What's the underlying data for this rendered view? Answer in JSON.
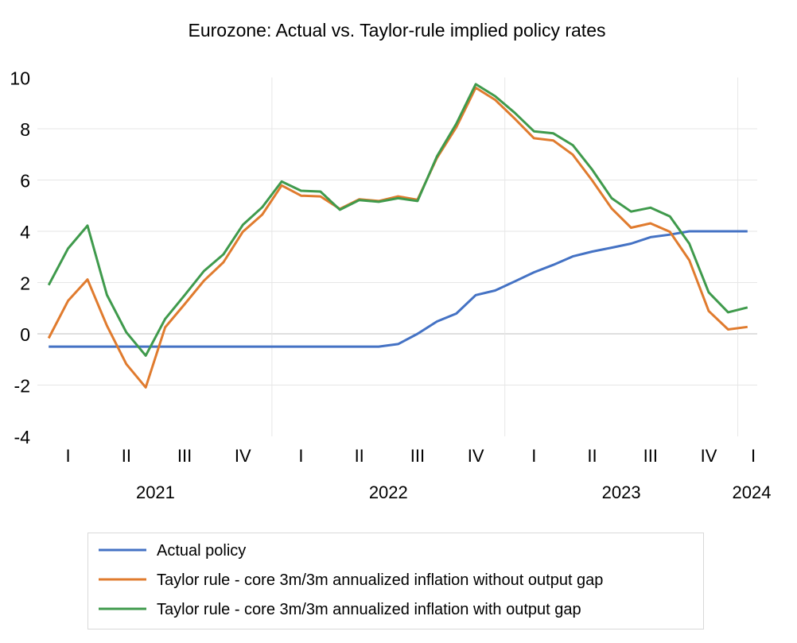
{
  "chart_data": {
    "type": "line",
    "title": "Eurozone: Actual vs. Taylor-rule implied policy rates",
    "xlabel": "",
    "ylabel": "",
    "ylim": [
      -4,
      10
    ],
    "yticks": [
      "10",
      "8",
      "6",
      "4",
      "2",
      "0",
      "-2",
      "-4"
    ],
    "ytick_values": [
      10,
      8,
      6,
      4,
      2,
      0,
      -2,
      -4
    ],
    "grid": true,
    "legend_position": "bottom",
    "x_months": 37,
    "quarters": [
      {
        "label": "I",
        "month_index": 1
      },
      {
        "label": "II",
        "month_index": 4
      },
      {
        "label": "III",
        "month_index": 7
      },
      {
        "label": "IV",
        "month_index": 10
      },
      {
        "label": "I",
        "month_index": 13
      },
      {
        "label": "II",
        "month_index": 16
      },
      {
        "label": "III",
        "month_index": 19
      },
      {
        "label": "IV",
        "month_index": 22
      },
      {
        "label": "I",
        "month_index": 25
      },
      {
        "label": "II",
        "month_index": 28
      },
      {
        "label": "III",
        "month_index": 31
      },
      {
        "label": "IV",
        "month_index": 34
      },
      {
        "label": "I",
        "month_index": 36.3
      }
    ],
    "years": [
      {
        "label": "2021",
        "start": 0,
        "end": 12
      },
      {
        "label": "2022",
        "start": 12,
        "end": 24
      },
      {
        "label": "2023",
        "start": 24,
        "end": 36
      },
      {
        "label": "2024",
        "start": 36,
        "end": 37
      }
    ],
    "series": [
      {
        "name": "Actual policy",
        "color": "#4472C4",
        "values": [
          -0.5,
          -0.5,
          -0.5,
          -0.5,
          -0.5,
          -0.5,
          -0.5,
          -0.5,
          -0.5,
          -0.5,
          -0.5,
          -0.5,
          -0.5,
          -0.5,
          -0.5,
          -0.5,
          -0.5,
          -0.5,
          -0.4,
          0.0,
          0.48,
          0.79,
          1.51,
          1.69,
          2.04,
          2.4,
          2.69,
          3.02,
          3.21,
          3.36,
          3.52,
          3.77,
          3.87,
          4.0,
          4.0,
          4.0,
          4.0
        ]
      },
      {
        "name": "Taylor rule - core 3m/3m annualized inflation without output gap",
        "color": "#E07B2E",
        "values": [
          -0.17,
          1.29,
          2.12,
          0.32,
          -1.18,
          -2.09,
          0.25,
          1.15,
          2.07,
          2.79,
          3.98,
          4.65,
          5.79,
          5.39,
          5.36,
          4.87,
          5.25,
          5.18,
          5.36,
          5.23,
          6.86,
          8.06,
          9.6,
          9.13,
          8.4,
          7.63,
          7.54,
          6.99,
          5.98,
          4.89,
          4.14,
          4.31,
          3.98,
          2.87,
          0.89,
          0.17,
          0.27
        ]
      },
      {
        "name": "Taylor rule - core 3m/3m annualized inflation with output gap",
        "color": "#3F9A4C",
        "values": [
          1.9,
          3.33,
          4.22,
          1.52,
          0.06,
          -0.85,
          0.58,
          1.5,
          2.45,
          3.1,
          4.25,
          4.94,
          5.94,
          5.58,
          5.55,
          4.84,
          5.22,
          5.15,
          5.29,
          5.18,
          6.92,
          8.2,
          9.74,
          9.27,
          8.63,
          7.9,
          7.82,
          7.36,
          6.4,
          5.29,
          4.77,
          4.92,
          4.58,
          3.52,
          1.62,
          0.84,
          1.03
        ]
      }
    ]
  }
}
